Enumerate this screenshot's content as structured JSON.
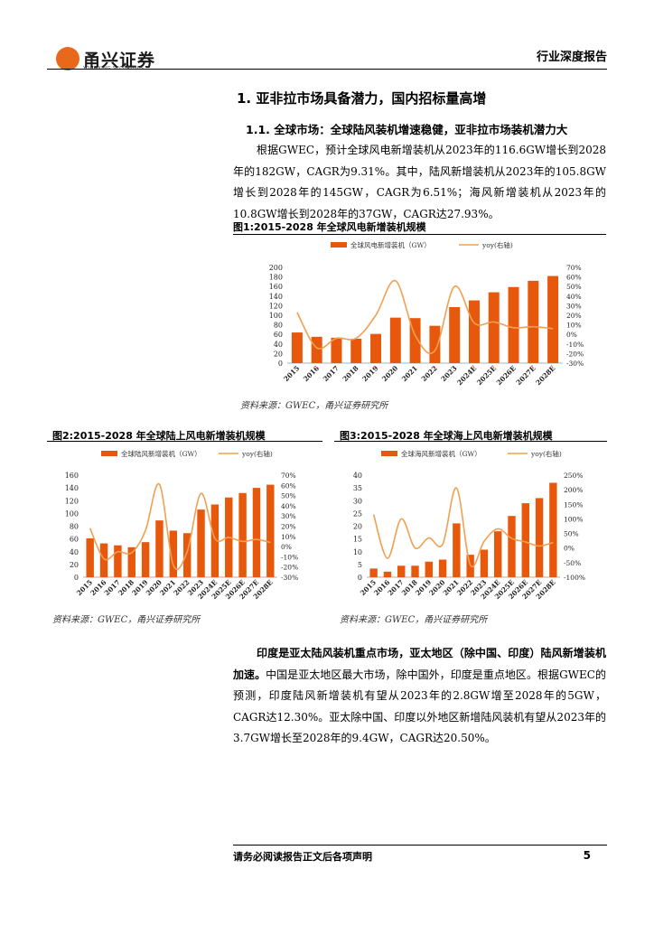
{
  "header": {
    "logo_text": "甬兴证券",
    "logo_sub": "YONGXING SECURITIES",
    "report_type": "行业深度报告"
  },
  "section": {
    "h1": "1. 亚非拉市场具备潜力，国内招标量高增",
    "h2": "1.1. 全球市场：全球陆风装机增速稳健，亚非拉市场装机潜力大",
    "p1": "根据GWEC，预计全球风电新增装机从2023年的116.6GW增长到2028年的182GW，CAGR为9.31%。其中，陆风新增装机从2023年的105.8GW增长到2028年的145GW，CAGR为6.51%；海风新增装机从2023年的10.8GW增长到2028年的37GW，CAGR达27.93%。",
    "p2_bold": "印度是亚太陆风装机重点市场，亚太地区（除中国、印度）陆风新增装机加速。",
    "p2_rest": "中国是亚太地区最大市场，除中国外，印度是重点地区。根据GWEC的预测，印度陆风新增装机有望从2023年的2.8GW增至2028年的5GW，CAGR达12.30%。亚太除中国、印度以外地区新增陆风装机有望从2023年的3.7GW增长至2028年的9.4GW，CAGR达20.50%。"
  },
  "figures": {
    "fig1_title": "图1:2015-2028 年全球风电新增装机规模",
    "fig2_title": "图2:2015-2028 年全球陆上风电新增装机规模",
    "fig3_title": "图3:2015-2028 年全球海上风电新增装机规模",
    "source": "资料来源：GWEC，甬兴证券研究所"
  },
  "footer": {
    "disclaimer": "请务必阅读报告正文后各项声明",
    "page": "5"
  },
  "colors": {
    "bar": "#e8580c",
    "line": "#f0a050",
    "logo": "#e8691b"
  },
  "chart_data": [
    {
      "type": "bar",
      "categories": [
        "2015",
        "2016",
        "2017",
        "2018",
        "2019",
        "2020",
        "2021",
        "2022",
        "2023",
        "2024E",
        "2025E",
        "2026E",
        "2027E",
        "2028E"
      ],
      "series": [
        {
          "name": "全球风电新增装机（GW）",
          "type": "bar",
          "axis": "left",
          "values": [
            64,
            55,
            53,
            51,
            61,
            95,
            94,
            78,
            117,
            131,
            148,
            159,
            172,
            182
          ]
        },
        {
          "name": "yoy(右轴)",
          "type": "line",
          "axis": "right",
          "values": [
            23,
            -14,
            -4,
            -4,
            20,
            56,
            -1,
            -17,
            50,
            12,
            13,
            7,
            8,
            6
          ]
        }
      ],
      "ylim": [
        0,
        200
      ],
      "yticks": [
        0,
        20,
        40,
        60,
        80,
        100,
        120,
        140,
        160,
        180,
        200
      ],
      "y2lim": [
        -30,
        70
      ],
      "y2ticks": [
        "-30%",
        "-20%",
        "-10%",
        "0%",
        "10%",
        "20%",
        "30%",
        "40%",
        "50%",
        "60%",
        "70%"
      ],
      "legend": "top"
    },
    {
      "type": "bar",
      "categories": [
        "2015",
        "2016",
        "2017",
        "2018",
        "2019",
        "2020",
        "2021",
        "2022",
        "2023",
        "2024E",
        "2025E",
        "2026E",
        "2027E",
        "2028E"
      ],
      "series": [
        {
          "name": "全球陆风新增装机（GW）",
          "type": "bar",
          "axis": "left",
          "values": [
            61,
            53,
            50,
            47,
            55,
            89,
            73,
            69,
            106,
            114,
            125,
            132,
            140,
            145
          ]
        },
        {
          "name": "yoy(右轴)",
          "type": "line",
          "axis": "right",
          "values": [
            18,
            -12,
            -5,
            -6,
            16,
            61,
            -18,
            -5,
            52,
            8,
            9,
            5,
            7,
            4
          ]
        }
      ],
      "ylim": [
        0,
        160
      ],
      "yticks": [
        0,
        20,
        40,
        60,
        80,
        100,
        120,
        140,
        160
      ],
      "y2lim": [
        -30,
        70
      ],
      "y2ticks": [
        "-30%",
        "-20%",
        "-10%",
        "0%",
        "10%",
        "20%",
        "30%",
        "40%",
        "50%",
        "60%",
        "70%"
      ],
      "legend": "top"
    },
    {
      "type": "bar",
      "categories": [
        "2015",
        "2016",
        "2017",
        "2018",
        "2019",
        "2020",
        "2021",
        "2022",
        "2023",
        "2024E",
        "2025E",
        "2026E",
        "2027E",
        "2028E"
      ],
      "series": [
        {
          "name": "全球海风新增装机（GW）",
          "type": "bar",
          "axis": "left",
          "values": [
            3.4,
            2.2,
            4.5,
            4.5,
            6.1,
            6.9,
            21.1,
            8.8,
            10.8,
            18.0,
            24.0,
            29.0,
            31.0,
            37.0
          ]
        },
        {
          "name": "yoy(右轴)",
          "type": "line",
          "axis": "right",
          "values": [
            115,
            -35,
            100,
            0,
            35,
            13,
            206,
            -58,
            23,
            66,
            33,
            21,
            7,
            19
          ]
        }
      ],
      "ylim": [
        0,
        40
      ],
      "yticks": [
        0,
        5,
        10,
        15,
        20,
        25,
        30,
        35,
        40
      ],
      "y2lim": [
        -100,
        250
      ],
      "y2ticks": [
        "-100%",
        "-50%",
        "0%",
        "50%",
        "100%",
        "150%",
        "200%",
        "250%"
      ],
      "legend": "top"
    }
  ]
}
